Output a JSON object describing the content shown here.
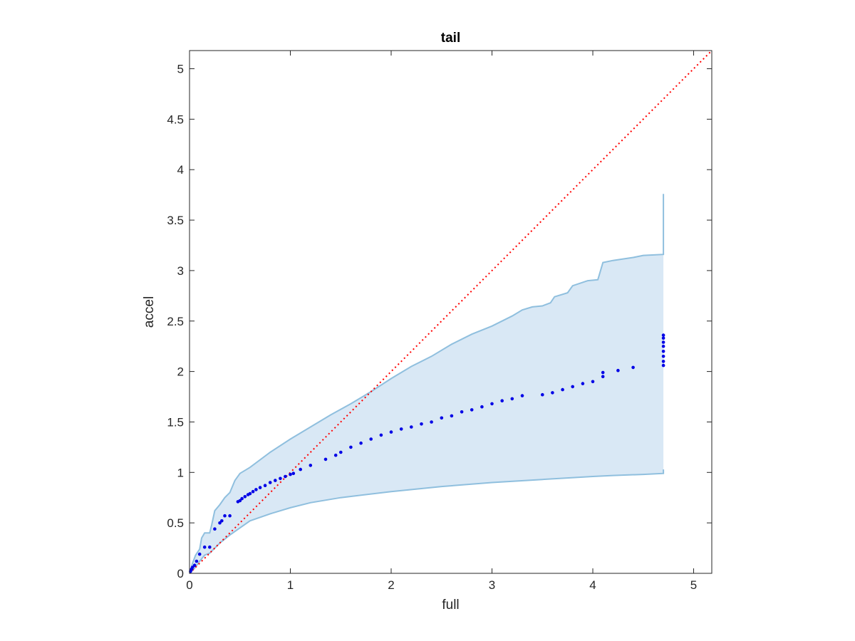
{
  "chart_data": {
    "type": "scatter",
    "title": "tail",
    "xlabel": "full",
    "ylabel": "accel",
    "xlim": [
      0,
      5.18
    ],
    "ylim": [
      0,
      5.18
    ],
    "xticks": [
      0,
      1,
      2,
      3,
      4,
      5
    ],
    "yticks": [
      0,
      0.5,
      1,
      1.5,
      2,
      2.5,
      3,
      3.5,
      4,
      4.5,
      5
    ],
    "xtick_labels": [
      "0",
      "1",
      "2",
      "3",
      "4",
      "5"
    ],
    "ytick_labels": [
      "0",
      "0.5",
      "1",
      "1.5",
      "2",
      "2.5",
      "3",
      "3.5",
      "4",
      "4.5",
      "5"
    ],
    "grid": false,
    "colors": {
      "points": "#0000e6",
      "band_fill": "#d9e8f5",
      "band_edge": "#8fbfde",
      "reference_line": "#ff0000",
      "axes": "#262626"
    },
    "reference_line": {
      "style": "dotted",
      "slope": 1,
      "intercept": 0
    },
    "band": {
      "upper": [
        [
          0,
          0
        ],
        [
          0.03,
          0.1
        ],
        [
          0.06,
          0.18
        ],
        [
          0.1,
          0.24
        ],
        [
          0.12,
          0.35
        ],
        [
          0.15,
          0.4
        ],
        [
          0.2,
          0.4
        ],
        [
          0.22,
          0.48
        ],
        [
          0.25,
          0.62
        ],
        [
          0.3,
          0.68
        ],
        [
          0.35,
          0.75
        ],
        [
          0.4,
          0.8
        ],
        [
          0.45,
          0.92
        ],
        [
          0.5,
          0.99
        ],
        [
          0.6,
          1.05
        ],
        [
          0.8,
          1.2
        ],
        [
          1,
          1.33
        ],
        [
          1.2,
          1.45
        ],
        [
          1.4,
          1.57
        ],
        [
          1.6,
          1.68
        ],
        [
          1.8,
          1.8
        ],
        [
          2,
          1.93
        ],
        [
          2.2,
          2.05
        ],
        [
          2.4,
          2.15
        ],
        [
          2.6,
          2.27
        ],
        [
          2.8,
          2.37
        ],
        [
          3,
          2.45
        ],
        [
          3.2,
          2.55
        ],
        [
          3.3,
          2.61
        ],
        [
          3.4,
          2.64
        ],
        [
          3.5,
          2.65
        ],
        [
          3.58,
          2.68
        ],
        [
          3.62,
          2.74
        ],
        [
          3.75,
          2.78
        ],
        [
          3.8,
          2.85
        ],
        [
          3.95,
          2.9
        ],
        [
          4.05,
          2.91
        ],
        [
          4.1,
          3.08
        ],
        [
          4.2,
          3.1
        ],
        [
          4.4,
          3.13
        ],
        [
          4.5,
          3.15
        ],
        [
          4.7,
          3.16
        ],
        [
          4.7,
          3.76
        ]
      ],
      "lower": [
        [
          0,
          0
        ],
        [
          0.05,
          0.05
        ],
        [
          0.1,
          0.12
        ],
        [
          0.15,
          0.18
        ],
        [
          0.2,
          0.2
        ],
        [
          0.3,
          0.3
        ],
        [
          0.4,
          0.38
        ],
        [
          0.5,
          0.45
        ],
        [
          0.6,
          0.52
        ],
        [
          0.8,
          0.59
        ],
        [
          1,
          0.65
        ],
        [
          1.2,
          0.7
        ],
        [
          1.5,
          0.75
        ],
        [
          2,
          0.81
        ],
        [
          2.5,
          0.86
        ],
        [
          3,
          0.9
        ],
        [
          3.5,
          0.93
        ],
        [
          4,
          0.96
        ],
        [
          4.2,
          0.97
        ],
        [
          4.5,
          0.98
        ],
        [
          4.7,
          0.99
        ],
        [
          4.7,
          1.03
        ]
      ]
    },
    "points": {
      "x": [
        0.01,
        0.02,
        0.03,
        0.05,
        0.07,
        0.1,
        0.15,
        0.2,
        0.25,
        0.3,
        0.32,
        0.35,
        0.4,
        0.48,
        0.5,
        0.52,
        0.55,
        0.58,
        0.6,
        0.63,
        0.66,
        0.7,
        0.75,
        0.8,
        0.85,
        0.9,
        0.95,
        1,
        1.03,
        1.1,
        1.2,
        1.35,
        1.45,
        1.5,
        1.6,
        1.7,
        1.8,
        1.9,
        2,
        2.1,
        2.2,
        2.3,
        2.4,
        2.5,
        2.6,
        2.7,
        2.8,
        2.9,
        3,
        3.1,
        3.2,
        3.3,
        3.5,
        3.6,
        3.7,
        3.8,
        3.9,
        4,
        4.1,
        4.1,
        4.25,
        4.4,
        4.7,
        4.7,
        4.7,
        4.7,
        4.7,
        4.7,
        4.7,
        4.7
      ],
      "y": [
        0.02,
        0.04,
        0.06,
        0.08,
        0.12,
        0.19,
        0.26,
        0.26,
        0.44,
        0.5,
        0.52,
        0.57,
        0.57,
        0.71,
        0.72,
        0.74,
        0.76,
        0.78,
        0.79,
        0.81,
        0.83,
        0.85,
        0.87,
        0.9,
        0.92,
        0.94,
        0.96,
        0.98,
        0.99,
        1.03,
        1.07,
        1.13,
        1.17,
        1.2,
        1.25,
        1.29,
        1.33,
        1.37,
        1.4,
        1.43,
        1.45,
        1.48,
        1.5,
        1.54,
        1.56,
        1.6,
        1.62,
        1.65,
        1.68,
        1.71,
        1.73,
        1.76,
        1.77,
        1.79,
        1.82,
        1.85,
        1.88,
        1.9,
        1.95,
        1.99,
        2.01,
        2.04,
        2.06,
        2.1,
        2.15,
        2.2,
        2.25,
        2.29,
        2.33,
        2.36
      ]
    }
  }
}
